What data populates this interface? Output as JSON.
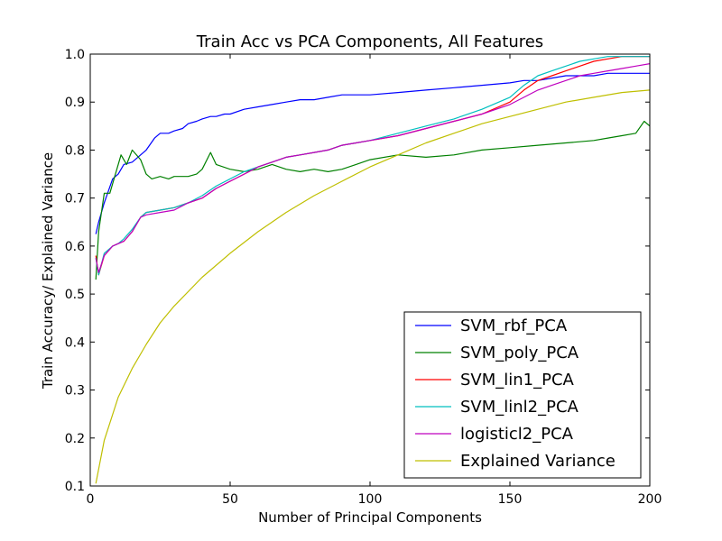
{
  "chart_data": {
    "type": "line",
    "title": "Train Acc vs PCA Components, All Features",
    "xlabel": "Number of Principal Components",
    "ylabel": "Train Accuracy/ Explained Variance",
    "xlim": [
      0,
      200
    ],
    "ylim": [
      0.1,
      1.0
    ],
    "xticks": [
      0,
      50,
      100,
      150,
      200
    ],
    "xtick_labels": [
      "0",
      "50",
      "100",
      "150",
      "200"
    ],
    "yticks": [
      0.1,
      0.2,
      0.3,
      0.4,
      0.5,
      0.6,
      0.7,
      0.8,
      0.9,
      1.0
    ],
    "ytick_labels": [
      "0.1",
      "0.2",
      "0.3",
      "0.4",
      "0.5",
      "0.6",
      "0.7",
      "0.8",
      "0.9",
      "1.0"
    ],
    "grid": false,
    "legend_position": "bottom-right",
    "series": [
      {
        "name": "SVM_rbf_PCA",
        "color": "#0000ff",
        "x": [
          2,
          3,
          5,
          8,
          10,
          12,
          15,
          18,
          20,
          23,
          25,
          28,
          30,
          33,
          35,
          38,
          40,
          43,
          45,
          48,
          50,
          55,
          60,
          65,
          70,
          75,
          80,
          85,
          90,
          95,
          100,
          110,
          120,
          130,
          140,
          150,
          155,
          160,
          165,
          170,
          175,
          180,
          185,
          190,
          195,
          200
        ],
        "y": [
          0.625,
          0.65,
          0.69,
          0.74,
          0.75,
          0.77,
          0.775,
          0.79,
          0.8,
          0.825,
          0.835,
          0.835,
          0.84,
          0.845,
          0.855,
          0.86,
          0.865,
          0.87,
          0.87,
          0.875,
          0.875,
          0.885,
          0.89,
          0.895,
          0.9,
          0.905,
          0.905,
          0.91,
          0.915,
          0.915,
          0.915,
          0.92,
          0.925,
          0.93,
          0.935,
          0.94,
          0.945,
          0.945,
          0.95,
          0.955,
          0.955,
          0.955,
          0.96,
          0.96,
          0.96,
          0.96
        ]
      },
      {
        "name": "SVM_poly_PCA",
        "color": "#008000",
        "x": [
          2,
          3,
          5,
          7,
          9,
          11,
          13,
          15,
          18,
          20,
          22,
          25,
          28,
          30,
          33,
          35,
          38,
          40,
          43,
          45,
          50,
          55,
          60,
          65,
          70,
          75,
          80,
          85,
          90,
          95,
          100,
          110,
          120,
          130,
          140,
          150,
          160,
          170,
          180,
          185,
          190,
          195,
          198,
          200
        ],
        "y": [
          0.53,
          0.63,
          0.71,
          0.71,
          0.75,
          0.79,
          0.77,
          0.8,
          0.78,
          0.75,
          0.74,
          0.745,
          0.74,
          0.745,
          0.745,
          0.745,
          0.75,
          0.76,
          0.795,
          0.77,
          0.76,
          0.755,
          0.76,
          0.77,
          0.76,
          0.755,
          0.76,
          0.755,
          0.76,
          0.77,
          0.78,
          0.79,
          0.785,
          0.79,
          0.8,
          0.805,
          0.81,
          0.815,
          0.82,
          0.825,
          0.83,
          0.835,
          0.86,
          0.85
        ]
      },
      {
        "name": "SVM_lin1_PCA",
        "color": "#ff0000",
        "x": [
          2,
          3,
          5,
          8,
          10,
          12,
          15,
          18,
          20,
          25,
          30,
          35,
          40,
          45,
          50,
          55,
          60,
          65,
          70,
          75,
          80,
          85,
          90,
          95,
          100,
          110,
          120,
          130,
          140,
          150,
          155,
          160,
          165,
          170,
          175,
          180,
          185,
          190,
          195,
          200
        ],
        "y": [
          0.58,
          0.54,
          0.58,
          0.6,
          0.605,
          0.61,
          0.63,
          0.66,
          0.67,
          0.675,
          0.68,
          0.69,
          0.7,
          0.72,
          0.735,
          0.75,
          0.765,
          0.775,
          0.785,
          0.79,
          0.795,
          0.8,
          0.81,
          0.815,
          0.82,
          0.83,
          0.845,
          0.86,
          0.875,
          0.9,
          0.925,
          0.945,
          0.955,
          0.965,
          0.975,
          0.985,
          0.99,
          0.995,
          0.995,
          0.995
        ]
      },
      {
        "name": "SVM_linl2_PCA",
        "color": "#00bfbf",
        "x": [
          2,
          3,
          5,
          8,
          10,
          12,
          15,
          18,
          20,
          25,
          30,
          35,
          40,
          45,
          50,
          55,
          60,
          65,
          70,
          75,
          80,
          85,
          90,
          95,
          100,
          110,
          120,
          130,
          140,
          150,
          155,
          160,
          165,
          170,
          175,
          180,
          185,
          190,
          195,
          200
        ],
        "y": [
          0.575,
          0.54,
          0.585,
          0.6,
          0.605,
          0.615,
          0.635,
          0.66,
          0.67,
          0.675,
          0.68,
          0.69,
          0.705,
          0.725,
          0.74,
          0.755,
          0.765,
          0.775,
          0.785,
          0.79,
          0.795,
          0.8,
          0.81,
          0.815,
          0.82,
          0.835,
          0.85,
          0.865,
          0.885,
          0.91,
          0.935,
          0.955,
          0.965,
          0.975,
          0.985,
          0.99,
          0.995,
          0.995,
          0.995,
          0.995
        ]
      },
      {
        "name": "logisticl2_PCA",
        "color": "#bf00bf",
        "x": [
          2,
          3,
          5,
          8,
          10,
          12,
          15,
          18,
          20,
          25,
          30,
          35,
          40,
          45,
          50,
          55,
          60,
          65,
          70,
          75,
          80,
          85,
          90,
          95,
          100,
          110,
          120,
          130,
          140,
          150,
          155,
          160,
          165,
          170,
          175,
          180,
          185,
          190,
          195,
          200
        ],
        "y": [
          0.575,
          0.545,
          0.58,
          0.6,
          0.605,
          0.61,
          0.63,
          0.66,
          0.665,
          0.67,
          0.675,
          0.69,
          0.7,
          0.72,
          0.735,
          0.75,
          0.765,
          0.775,
          0.785,
          0.79,
          0.795,
          0.8,
          0.81,
          0.815,
          0.82,
          0.83,
          0.845,
          0.86,
          0.875,
          0.895,
          0.91,
          0.925,
          0.935,
          0.945,
          0.955,
          0.96,
          0.965,
          0.97,
          0.975,
          0.98
        ]
      },
      {
        "name": "Explained Variance",
        "color": "#bfbf00",
        "x": [
          2,
          5,
          10,
          15,
          20,
          25,
          30,
          40,
          50,
          60,
          70,
          80,
          90,
          100,
          110,
          120,
          130,
          140,
          150,
          160,
          170,
          180,
          190,
          200
        ],
        "y": [
          0.105,
          0.195,
          0.285,
          0.345,
          0.395,
          0.44,
          0.475,
          0.535,
          0.585,
          0.63,
          0.67,
          0.705,
          0.735,
          0.765,
          0.79,
          0.815,
          0.835,
          0.855,
          0.87,
          0.885,
          0.9,
          0.91,
          0.92,
          0.925
        ]
      }
    ]
  }
}
